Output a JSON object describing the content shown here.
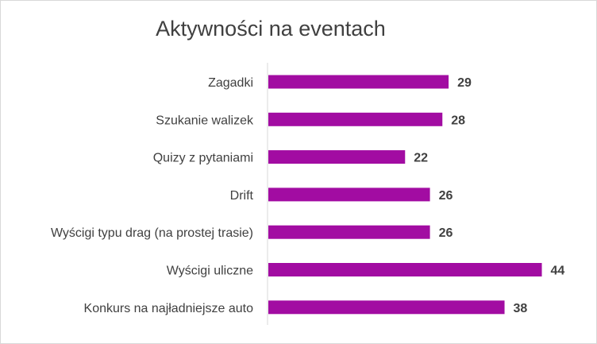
{
  "chart_data": {
    "type": "bar",
    "orientation": "horizontal",
    "title": "Aktywności na eventach",
    "categories": [
      "Zagadki",
      "Szukanie walizek",
      "Quizy z pytaniami",
      "Drift",
      "Wyścigi typu drag (na prostej trasie)",
      "Wyścigi uliczne",
      "Konkurs na najładniejsze auto"
    ],
    "values": [
      29,
      28,
      22,
      26,
      26,
      44,
      38
    ],
    "xlim": [
      0,
      50
    ],
    "grid": false,
    "legend": "none",
    "bar_color": "#A20CA2"
  }
}
